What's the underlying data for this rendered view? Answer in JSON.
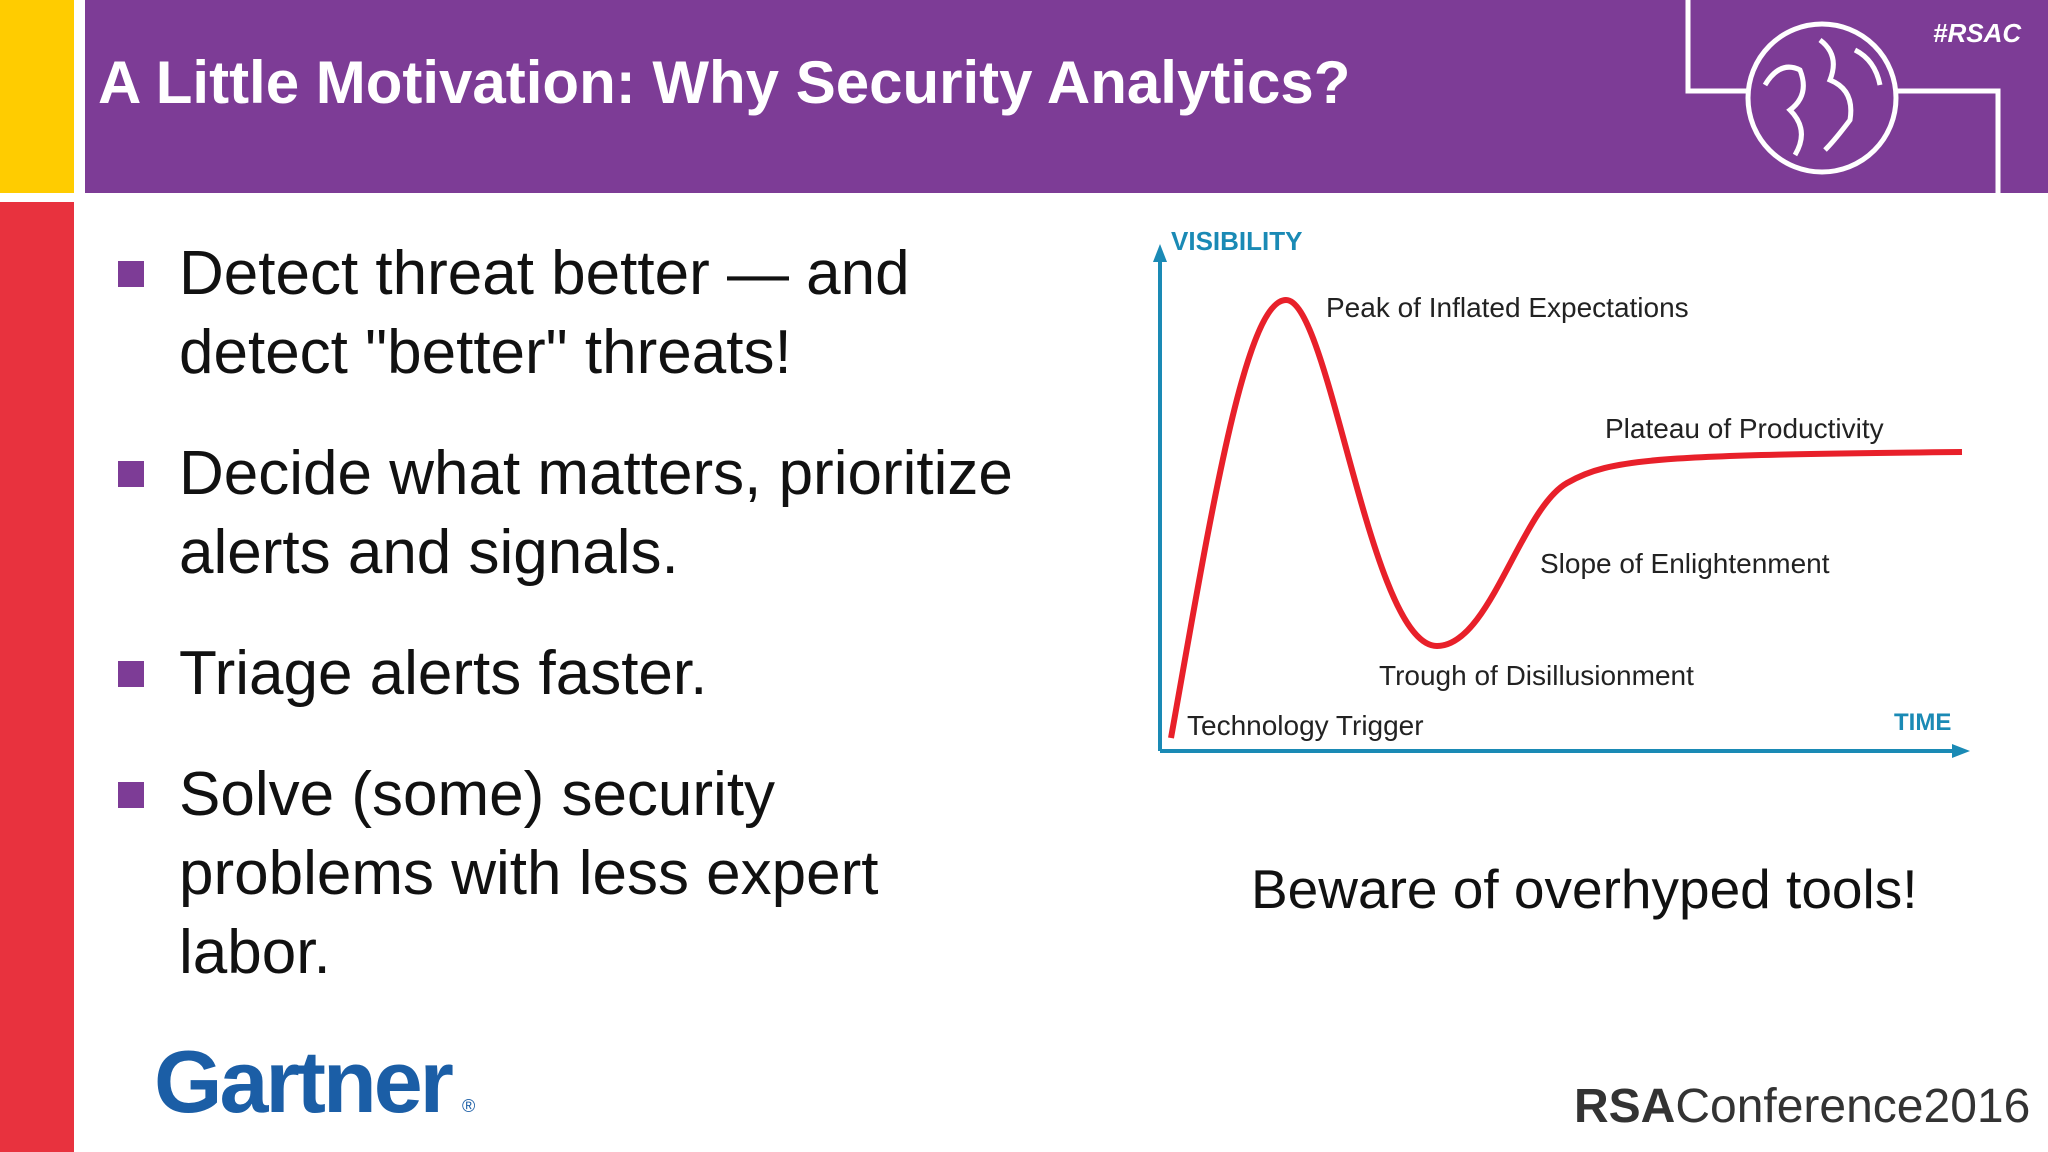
{
  "header": {
    "title": "A Little Motivation: Why Security Analytics?",
    "hashtag": "#RSAC"
  },
  "bullets": [
    [
      "Detect threat better — and",
      "detect \"better\" threats!"
    ],
    [
      "Decide what matters, prioritize",
      "alerts and signals."
    ],
    [
      "Triage alerts faster."
    ],
    [
      "Solve (some) security",
      "problems with less expert",
      "labor."
    ]
  ],
  "diagram": {
    "y_axis": "VISIBILITY",
    "x_axis": "TIME",
    "phases": [
      "Technology Trigger",
      "Peak of Inflated Expectations",
      "Trough of Disillusionment",
      "Slope of Enlightenment",
      "Plateau of Productivity"
    ]
  },
  "caption": "Beware of overhyped tools!",
  "footer": {
    "logo": "Gartner",
    "registered": "®",
    "brand": "RSA",
    "event": "Conference2016"
  }
}
